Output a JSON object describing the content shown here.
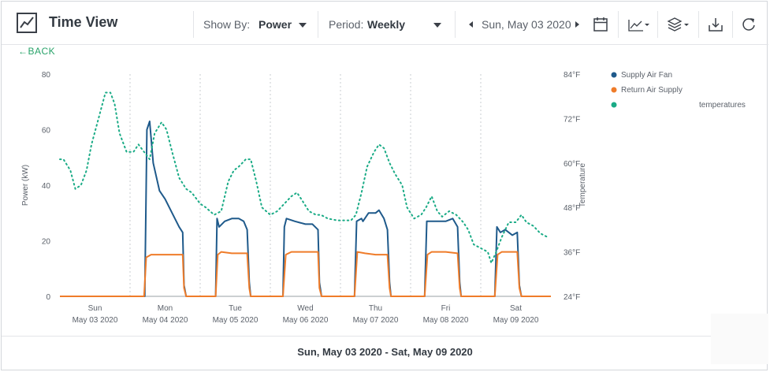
{
  "toolbar": {
    "title": "Time View",
    "show_by_label": "Show By:",
    "show_by_value": "Power",
    "period_label": "Period:",
    "period_value": "Weekly",
    "date": "Sun, May 03 2020",
    "icons": [
      "line-chart-icon",
      "caret-left-icon",
      "caret-right-icon",
      "calendar-icon",
      "chart-type-icon",
      "layers-icon",
      "download-icon",
      "refresh-icon"
    ]
  },
  "back_label": "←BACK",
  "footer_range": "Sun, May 03 2020 - Sat, May 09 2020",
  "colors": {
    "supply": "#1f5a8b",
    "return": "#ef7c2a",
    "temp": "#1aab86",
    "grid": "#c8ccd0",
    "text": "#5b616a"
  },
  "chart_data": {
    "type": "line",
    "ylabel": "Power (kW)",
    "y2label": "Temperature",
    "ylim": [
      0,
      80
    ],
    "y2lim": [
      24,
      84
    ],
    "y_ticks": [
      "0",
      "20",
      "40",
      "60",
      "80"
    ],
    "y2_ticks": [
      "24°F",
      "36°F",
      "48°F",
      "60°F",
      "72°F",
      "84°F"
    ],
    "x_range": [
      0,
      7
    ],
    "days": [
      {
        "day": "Sun",
        "date": "May 03 2020"
      },
      {
        "day": "Mon",
        "date": "May 04 2020"
      },
      {
        "day": "Tue",
        "date": "May 05 2020"
      },
      {
        "day": "Wed",
        "date": "May 06 2020"
      },
      {
        "day": "Thu",
        "date": "May 07 2020"
      },
      {
        "day": "Fri",
        "date": "May 08 2020"
      },
      {
        "day": "Sat",
        "date": "May 09 2020"
      }
    ],
    "legend": [
      "Supply Air Fan",
      "Return Air Supply",
      "temperatures"
    ],
    "series": [
      {
        "name": "Supply Air Fan",
        "axis": "left",
        "style": "solid",
        "points": [
          [
            0,
            0
          ],
          [
            1.17,
            0
          ],
          [
            1.21,
            0
          ],
          [
            1.24,
            60
          ],
          [
            1.28,
            63
          ],
          [
            1.33,
            48
          ],
          [
            1.42,
            38
          ],
          [
            1.5,
            35
          ],
          [
            1.6,
            30
          ],
          [
            1.7,
            25
          ],
          [
            1.75,
            23
          ],
          [
            1.77,
            4
          ],
          [
            1.8,
            0
          ],
          [
            2.22,
            0
          ],
          [
            2.24,
            28
          ],
          [
            2.27,
            25
          ],
          [
            2.35,
            27
          ],
          [
            2.45,
            28
          ],
          [
            2.55,
            28
          ],
          [
            2.62,
            27
          ],
          [
            2.67,
            24
          ],
          [
            2.7,
            5
          ],
          [
            2.72,
            0
          ],
          [
            3.18,
            0
          ],
          [
            3.2,
            25
          ],
          [
            3.23,
            28
          ],
          [
            3.35,
            27
          ],
          [
            3.5,
            26
          ],
          [
            3.6,
            26
          ],
          [
            3.68,
            24
          ],
          [
            3.7,
            5
          ],
          [
            3.73,
            0
          ],
          [
            4.2,
            0
          ],
          [
            4.23,
            27
          ],
          [
            4.3,
            28
          ],
          [
            4.32,
            27
          ],
          [
            4.4,
            30
          ],
          [
            4.5,
            30
          ],
          [
            4.55,
            31
          ],
          [
            4.62,
            28
          ],
          [
            4.67,
            24
          ],
          [
            4.7,
            5
          ],
          [
            4.72,
            0
          ],
          [
            5.2,
            0
          ],
          [
            5.23,
            27
          ],
          [
            5.35,
            27
          ],
          [
            5.5,
            27
          ],
          [
            5.6,
            28
          ],
          [
            5.67,
            25
          ],
          [
            5.7,
            5
          ],
          [
            5.72,
            0
          ],
          [
            6.2,
            0
          ],
          [
            6.23,
            25
          ],
          [
            6.28,
            23
          ],
          [
            6.35,
            24
          ],
          [
            6.45,
            22
          ],
          [
            6.52,
            23
          ],
          [
            6.55,
            4
          ],
          [
            6.58,
            0
          ],
          [
            7,
            0
          ]
        ]
      },
      {
        "name": "Return Air Supply",
        "axis": "left",
        "style": "solid",
        "points": [
          [
            0,
            0
          ],
          [
            1.17,
            0
          ],
          [
            1.2,
            0
          ],
          [
            1.23,
            14
          ],
          [
            1.3,
            15
          ],
          [
            1.5,
            15
          ],
          [
            1.75,
            15
          ],
          [
            1.77,
            3
          ],
          [
            1.8,
            0
          ],
          [
            2.22,
            0
          ],
          [
            2.25,
            15
          ],
          [
            2.3,
            16
          ],
          [
            2.45,
            15.5
          ],
          [
            2.67,
            15.5
          ],
          [
            2.7,
            3
          ],
          [
            2.72,
            0
          ],
          [
            3.18,
            0
          ],
          [
            3.22,
            15
          ],
          [
            3.3,
            16
          ],
          [
            3.5,
            16
          ],
          [
            3.68,
            16
          ],
          [
            3.7,
            3
          ],
          [
            3.73,
            0
          ],
          [
            4.2,
            0
          ],
          [
            4.24,
            16
          ],
          [
            4.35,
            15.5
          ],
          [
            4.5,
            15
          ],
          [
            4.67,
            15
          ],
          [
            4.7,
            3
          ],
          [
            4.72,
            0
          ],
          [
            5.2,
            0
          ],
          [
            5.24,
            15
          ],
          [
            5.3,
            16
          ],
          [
            5.5,
            16
          ],
          [
            5.67,
            15.5
          ],
          [
            5.7,
            3
          ],
          [
            5.72,
            0
          ],
          [
            6.2,
            0
          ],
          [
            6.24,
            15
          ],
          [
            6.3,
            16
          ],
          [
            6.52,
            16
          ],
          [
            6.55,
            3
          ],
          [
            6.58,
            0
          ],
          [
            7,
            0
          ]
        ]
      },
      {
        "name": "temperatures",
        "axis": "right",
        "style": "dotted",
        "points": [
          [
            0,
            61
          ],
          [
            0.05,
            61
          ],
          [
            0.15,
            58
          ],
          [
            0.22,
            53
          ],
          [
            0.3,
            54
          ],
          [
            0.38,
            58
          ],
          [
            0.45,
            65
          ],
          [
            0.55,
            72
          ],
          [
            0.65,
            79
          ],
          [
            0.72,
            79
          ],
          [
            0.78,
            76
          ],
          [
            0.85,
            68
          ],
          [
            0.95,
            63
          ],
          [
            1.05,
            63
          ],
          [
            1.12,
            65
          ],
          [
            1.2,
            63
          ],
          [
            1.28,
            61
          ],
          [
            1.35,
            68
          ],
          [
            1.45,
            71
          ],
          [
            1.52,
            69
          ],
          [
            1.6,
            63
          ],
          [
            1.7,
            56
          ],
          [
            1.8,
            53
          ],
          [
            1.88,
            52
          ],
          [
            2,
            49
          ],
          [
            2.08,
            48
          ],
          [
            2.2,
            46
          ],
          [
            2.3,
            47
          ],
          [
            2.4,
            55
          ],
          [
            2.48,
            58
          ],
          [
            2.55,
            59
          ],
          [
            2.65,
            61
          ],
          [
            2.72,
            61
          ],
          [
            2.8,
            55
          ],
          [
            2.88,
            48
          ],
          [
            3,
            46
          ],
          [
            3.1,
            47
          ],
          [
            3.2,
            49
          ],
          [
            3.3,
            51
          ],
          [
            3.38,
            52
          ],
          [
            3.45,
            50
          ],
          [
            3.55,
            47
          ],
          [
            3.65,
            46
          ],
          [
            3.72,
            46
          ],
          [
            3.82,
            45
          ],
          [
            3.95,
            44.5
          ],
          [
            4.05,
            44.5
          ],
          [
            4.15,
            44.5
          ],
          [
            4.22,
            46
          ],
          [
            4.3,
            52
          ],
          [
            4.38,
            59
          ],
          [
            4.48,
            63
          ],
          [
            4.55,
            65
          ],
          [
            4.62,
            64
          ],
          [
            4.7,
            60
          ],
          [
            4.78,
            57
          ],
          [
            4.88,
            54
          ],
          [
            4.95,
            48
          ],
          [
            5.05,
            45
          ],
          [
            5.15,
            46
          ],
          [
            5.22,
            48
          ],
          [
            5.3,
            51
          ],
          [
            5.38,
            47
          ],
          [
            5.45,
            45.5
          ],
          [
            5.55,
            47
          ],
          [
            5.65,
            46
          ],
          [
            5.75,
            44
          ],
          [
            5.82,
            42
          ],
          [
            5.9,
            38
          ],
          [
            6,
            37
          ],
          [
            6.1,
            36
          ],
          [
            6.15,
            33
          ],
          [
            6.22,
            36
          ],
          [
            6.3,
            40
          ],
          [
            6.4,
            44
          ],
          [
            6.5,
            44
          ],
          [
            6.58,
            46
          ],
          [
            6.65,
            44
          ],
          [
            6.75,
            43
          ],
          [
            6.85,
            41
          ],
          [
            6.95,
            40
          ]
        ]
      }
    ]
  }
}
